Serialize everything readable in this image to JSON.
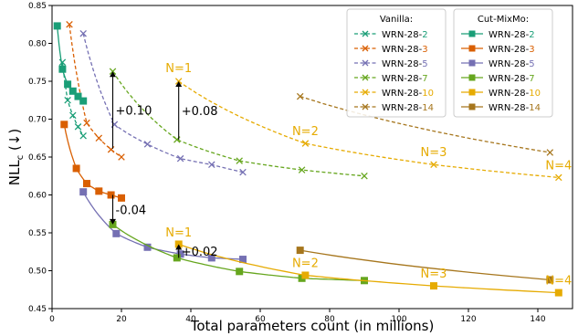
{
  "chart_data": {
    "type": "scatter",
    "xlabel": "Total parameters count (in millions)",
    "ylabel": "NLL",
    "ylabel_sub": "c",
    "ylabel_suffix": " (↓)",
    "xlim": [
      0,
      150
    ],
    "ylim": [
      0.45,
      0.85
    ],
    "xticks": [
      0,
      20,
      40,
      60,
      80,
      100,
      120,
      140
    ],
    "yticks": [
      0.45,
      0.5,
      0.55,
      0.6,
      0.65,
      0.7,
      0.75,
      0.8,
      0.85
    ],
    "ytick_labels": [
      "0.45",
      "0.50",
      "0.55",
      "0.60",
      "0.65",
      "0.70",
      "0.75",
      "0.80",
      "0.85"
    ],
    "legend_vanilla": {
      "title": "Vanilla:",
      "entries": [
        "WRN-28-2",
        "WRN-28-3",
        "WRN-28-5",
        "WRN-28-7",
        "WRN-28-10",
        "WRN-28-14"
      ]
    },
    "legend_cutmix": {
      "title": "Cut-MixMo:",
      "entries": [
        "WRN-28-2",
        "WRN-28-3",
        "WRN-28-5",
        "WRN-28-7",
        "WRN-28-10",
        "WRN-28-14"
      ]
    },
    "vanilla_series": [
      {
        "name": "WRN-28-2",
        "color": "#1a9e77",
        "x": [
          3.0,
          4.5,
          6.0,
          7.5,
          9.0
        ],
        "y": [
          0.775,
          0.725,
          0.705,
          0.69,
          0.678
        ]
      },
      {
        "name": "WRN-28-3",
        "color": "#d95f02",
        "x": [
          5.0,
          10.0,
          13.5,
          17.0,
          20.0
        ],
        "y": [
          0.825,
          0.695,
          0.675,
          0.66,
          0.65
        ]
      },
      {
        "name": "WRN-28-5",
        "color": "#7570b3",
        "x": [
          9.0,
          18.0,
          27.5,
          37.0,
          46.0,
          55.0
        ],
        "y": [
          0.813,
          0.693,
          0.667,
          0.648,
          0.64,
          0.63
        ]
      },
      {
        "name": "WRN-28-7",
        "color": "#66a61e",
        "x": [
          17.5,
          36.0,
          54.0,
          72.0,
          90.0
        ],
        "y": [
          0.763,
          0.673,
          0.645,
          0.633,
          0.625
        ]
      },
      {
        "name": "WRN-28-10",
        "color": "#e6ab02",
        "x": [
          36.5,
          73.0,
          110.0,
          146.0
        ],
        "y": [
          0.75,
          0.668,
          0.64,
          0.623
        ]
      },
      {
        "name": "WRN-28-14",
        "color": "#a6761d",
        "x": [
          71.5,
          143.5
        ],
        "y": [
          0.73,
          0.656
        ]
      }
    ],
    "cutmix_series": [
      {
        "name": "WRN-28-2",
        "color": "#1a9e77",
        "x": [
          1.5,
          3.0,
          4.5,
          6.0,
          7.5,
          9.0
        ],
        "y": [
          0.823,
          0.766,
          0.746,
          0.737,
          0.73,
          0.724
        ]
      },
      {
        "name": "WRN-28-3",
        "color": "#d95f02",
        "x": [
          3.5,
          7.0,
          10.0,
          13.5,
          17.0,
          20.0
        ],
        "y": [
          0.693,
          0.635,
          0.615,
          0.605,
          0.6,
          0.596
        ]
      },
      {
        "name": "WRN-28-5",
        "color": "#7570b3",
        "x": [
          9.0,
          18.5,
          27.5,
          37.0,
          46.0,
          55.0
        ],
        "y": [
          0.604,
          0.549,
          0.531,
          0.522,
          0.517,
          0.515
        ]
      },
      {
        "name": "WRN-28-7",
        "color": "#66a61e",
        "x": [
          17.5,
          36.0,
          54.0,
          72.0,
          90.0
        ],
        "y": [
          0.561,
          0.517,
          0.499,
          0.49,
          0.487
        ]
      },
      {
        "name": "WRN-28-10",
        "color": "#e6ab02",
        "x": [
          36.5,
          73.0,
          110.0,
          146.0
        ],
        "y": [
          0.535,
          0.494,
          0.48,
          0.471
        ]
      },
      {
        "name": "WRN-28-14",
        "color": "#a6761d",
        "x": [
          71.5,
          143.5
        ],
        "y": [
          0.527,
          0.488
        ]
      }
    ],
    "annotations": [
      {
        "text": "N=1",
        "color": "#e6ab02",
        "x": 36.5,
        "y": 0.762
      },
      {
        "text": "N=2",
        "color": "#e6ab02",
        "x": 73.0,
        "y": 0.679
      },
      {
        "text": "N=3",
        "color": "#e6ab02",
        "x": 110.0,
        "y": 0.651
      },
      {
        "text": "N=4",
        "color": "#e6ab02",
        "x": 146.0,
        "y": 0.634
      },
      {
        "text": "N=1",
        "color": "#e6ab02",
        "x": 36.5,
        "y": 0.545
      },
      {
        "text": "N=2",
        "color": "#e6ab02",
        "x": 73.0,
        "y": 0.505
      },
      {
        "text": "N=3",
        "color": "#e6ab02",
        "x": 110.0,
        "y": 0.491
      },
      {
        "text": "N=4",
        "color": "#e6ab02",
        "x": 146.0,
        "y": 0.482
      }
    ],
    "deltas": [
      {
        "label": "+0.10",
        "x": 17.5,
        "y_from": 0.661,
        "y_to": 0.763
      },
      {
        "label": "+0.08",
        "x": 36.5,
        "y_from": 0.673,
        "y_to": 0.75
      },
      {
        "label": "-0.04",
        "x": 17.5,
        "y_from": 0.6,
        "y_to": 0.561
      },
      {
        "label": "+0.02",
        "x": 36.5,
        "y_from": 0.517,
        "y_to": 0.535
      }
    ]
  }
}
